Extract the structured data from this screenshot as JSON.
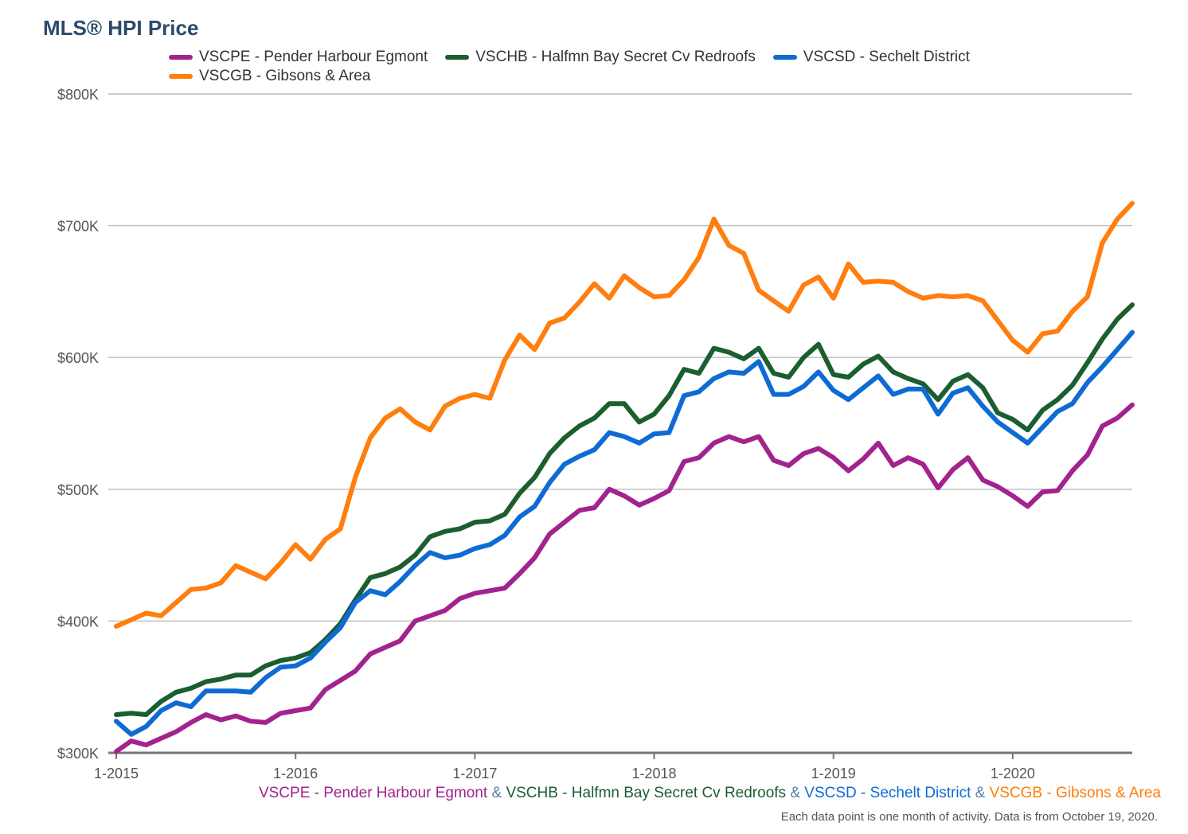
{
  "title": "MLS® HPI Price",
  "note": "Each data point is one month of activity. Data is from October 19, 2020.",
  "separator": "&",
  "chart_data": {
    "type": "line",
    "title": "MLS® HPI Price",
    "y_ticks": [
      "$300K",
      "$400K",
      "$500K",
      "$600K",
      "$700K",
      "$800K"
    ],
    "y_tick_values": [
      300000,
      400000,
      500000,
      600000,
      700000,
      800000
    ],
    "x_ticks": [
      "1-2015",
      "1-2016",
      "1-2017",
      "1-2018",
      "1-2019",
      "1-2020"
    ],
    "x_tick_index": [
      0,
      12,
      24,
      36,
      48,
      60
    ],
    "ylim": [
      300000,
      800000
    ],
    "grid": true,
    "legend_position": "top",
    "x_start": "1-2015",
    "x_end": "9-2020",
    "series": [
      {
        "name": "VSCPE - Pender Harbour Egmont",
        "color": "#a2238e",
        "values": [
          301000,
          309000,
          306000,
          311000,
          316000,
          323000,
          329000,
          325000,
          328000,
          324000,
          323000,
          330000,
          332000,
          334000,
          348000,
          355000,
          362000,
          375000,
          380000,
          385000,
          400000,
          404000,
          408000,
          417000,
          421000,
          423000,
          425000,
          436000,
          448000,
          466000,
          475000,
          484000,
          486000,
          500000,
          495000,
          488000,
          493000,
          499000,
          521000,
          524000,
          535000,
          540000,
          536000,
          540000,
          522000,
          518000,
          527000,
          531000,
          524000,
          514000,
          523000,
          535000,
          518000,
          524000,
          519000,
          501000,
          515000,
          524000,
          507000,
          502000,
          495000,
          487000,
          498000,
          499000,
          514000,
          526000,
          548000,
          554000,
          564000
        ]
      },
      {
        "name": "VSCHB - Halfmn Bay Secret Cv Redroofs",
        "color": "#1b5e30",
        "values": [
          329000,
          330000,
          329000,
          339000,
          346000,
          349000,
          354000,
          356000,
          359000,
          359000,
          366000,
          370000,
          372000,
          376000,
          386000,
          398000,
          416000,
          433000,
          436000,
          441000,
          450000,
          464000,
          468000,
          470000,
          475000,
          476000,
          481000,
          497000,
          509000,
          527000,
          539000,
          548000,
          554000,
          565000,
          565000,
          551000,
          557000,
          571000,
          591000,
          588000,
          607000,
          604000,
          599000,
          607000,
          588000,
          585000,
          600000,
          610000,
          587000,
          585000,
          595000,
          601000,
          589000,
          584000,
          580000,
          568000,
          582000,
          587000,
          577000,
          558000,
          553000,
          545000,
          560000,
          568000,
          579000,
          596000,
          614000,
          629000,
          640000
        ]
      },
      {
        "name": "VSCSD - Sechelt District",
        "color": "#0f6bd4",
        "values": [
          324000,
          314000,
          320000,
          332000,
          338000,
          335000,
          347000,
          347000,
          347000,
          346000,
          357000,
          365000,
          366000,
          372000,
          384000,
          395000,
          414000,
          423000,
          420000,
          430000,
          442000,
          452000,
          448000,
          450000,
          455000,
          458000,
          465000,
          479000,
          487000,
          505000,
          519000,
          525000,
          530000,
          543000,
          540000,
          535000,
          542000,
          543000,
          571000,
          574000,
          584000,
          589000,
          588000,
          597000,
          572000,
          572000,
          578000,
          589000,
          575000,
          568000,
          577000,
          586000,
          572000,
          576000,
          576000,
          557000,
          573000,
          577000,
          563000,
          551000,
          543000,
          535000,
          547000,
          559000,
          565000,
          581000,
          593000,
          606000,
          619000
        ]
      },
      {
        "name": "VSCGB - Gibsons & Area",
        "color": "#ff7e0e",
        "values": [
          396000,
          401000,
          406000,
          404000,
          414000,
          424000,
          425000,
          429000,
          442000,
          437000,
          432000,
          444000,
          458000,
          447000,
          462000,
          470000,
          509000,
          539000,
          554000,
          561000,
          551000,
          545000,
          563000,
          569000,
          572000,
          569000,
          598000,
          617000,
          606000,
          626000,
          630000,
          642000,
          656000,
          645000,
          662000,
          653000,
          646000,
          647000,
          659000,
          676000,
          705000,
          685000,
          679000,
          651000,
          643000,
          635000,
          655000,
          661000,
          645000,
          671000,
          657000,
          658000,
          657000,
          650000,
          645000,
          647000,
          646000,
          647000,
          643000,
          628000,
          613000,
          604000,
          618000,
          620000,
          635000,
          646000,
          687000,
          705000,
          717000
        ]
      }
    ]
  }
}
